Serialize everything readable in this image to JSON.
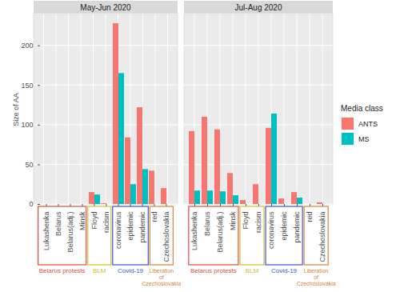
{
  "chart_data": {
    "type": "bar",
    "ylabel": "Size of AA",
    "categories": [
      "Lukashenka",
      "Belarus",
      "Belarus(adj.)",
      "Minsk",
      "Floyd",
      "racism",
      "coronavirus",
      "epidemic",
      "pandemic",
      "red",
      "Czechoslovakia"
    ],
    "ylim": [
      0,
      239
    ],
    "yticks": [
      0,
      50,
      100,
      150,
      200
    ],
    "grid": true,
    "legend": "right",
    "legend_title": "Media class",
    "panels": [
      {
        "title": "May-Jun 2020",
        "series": [
          {
            "name": "ANTS",
            "color": "#F8766D",
            "values": [
              0,
              0,
              0,
              0,
              15,
              1,
              228,
              84,
              122,
              42,
              20
            ]
          },
          {
            "name": "MS",
            "color": "#00BFC4",
            "values": [
              0,
              0,
              0,
              0,
              12,
              0,
              165,
              25,
              44,
              0,
              0
            ]
          }
        ]
      },
      {
        "title": "Jul-Aug 2020",
        "series": [
          {
            "name": "ANTS",
            "color": "#F8766D",
            "values": [
              92,
              110,
              94,
              39,
              5,
              25,
              96,
              7,
              15,
              0,
              2
            ]
          },
          {
            "name": "MS",
            "color": "#00BFC4",
            "values": [
              17,
              17,
              16,
              11,
              0,
              0,
              114,
              0,
              8,
              0,
              0
            ]
          }
        ]
      }
    ],
    "groups": [
      {
        "name": "Belarus protests",
        "color": "#E8483E",
        "categories": [
          "Lukashenka",
          "Belarus",
          "Belarus(adj.)",
          "Minsk"
        ]
      },
      {
        "name": "BLM",
        "color": "#C9C232",
        "categories": [
          "Floyd",
          "racism"
        ]
      },
      {
        "name": "Covid-19",
        "color": "#3F52D6",
        "categories": [
          "coronavirus",
          "epidemic",
          "pandemic"
        ]
      },
      {
        "name": "Liberation of Czechoslovakia",
        "color": "#D2843C",
        "categories": [
          "red",
          "Czechoslovakia"
        ]
      }
    ]
  }
}
